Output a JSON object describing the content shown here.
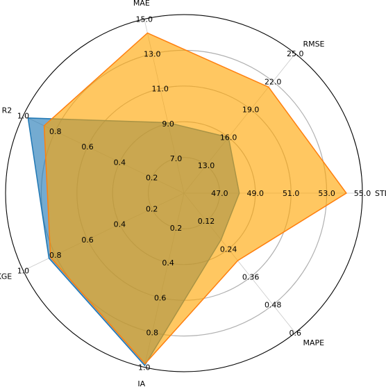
{
  "chart_data": {
    "type": "radar",
    "grid": true,
    "axes": [
      {
        "name": "STD",
        "min": 45.0,
        "max": 55.0,
        "ticks": [
          "47.0",
          "49.0",
          "51.0",
          "53.0",
          "55.0"
        ]
      },
      {
        "name": "RMSE",
        "min": 10.0,
        "max": 25.0,
        "ticks": [
          "13.0",
          "16.0",
          "19.0",
          "22.0",
          "25.0"
        ]
      },
      {
        "name": "MAE",
        "min": 5.0,
        "max": 15.0,
        "ticks": [
          "7.0",
          "9.0",
          "11.0",
          "13.0",
          "15.0"
        ]
      },
      {
        "name": "R2",
        "min": 0.0,
        "max": 1.0,
        "ticks": [
          "0.2",
          "0.4",
          "0.6",
          "0.8",
          "1.0"
        ]
      },
      {
        "name": "KGE",
        "min": 0.0,
        "max": 1.0,
        "ticks": [
          "0.2",
          "0.4",
          "0.6",
          "0.8",
          "1.0"
        ]
      },
      {
        "name": "IA",
        "min": 0.0,
        "max": 1.0,
        "ticks": [
          "0.2",
          "0.4",
          "0.6",
          "0.8",
          "1.0"
        ]
      },
      {
        "name": "MAPE",
        "min": 0.0,
        "max": 0.6,
        "ticks": [
          "0.12",
          "0.24",
          "0.36",
          "0.48",
          "0.6"
        ]
      }
    ],
    "series": [
      {
        "color": "#1f77b4",
        "fill": "#1f77b4",
        "values": [
          48.1,
          16.0,
          9.05,
          0.97,
          0.84,
          0.99,
          0.2
        ]
      },
      {
        "color": "#ff7f0e",
        "fill": "#ffa500",
        "values": [
          54.1,
          21.4,
          14.2,
          0.87,
          0.83,
          0.98,
          0.29
        ]
      }
    ]
  }
}
